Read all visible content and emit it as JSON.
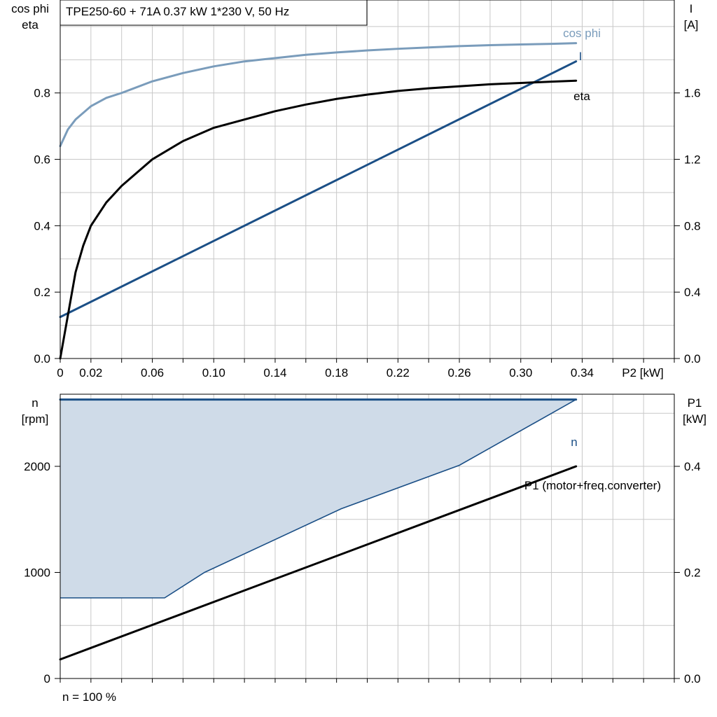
{
  "colors": {
    "cos_phi": "#7a9cbb",
    "current": "#1b4f86",
    "eta": "#000000",
    "speed": "#1b4f86",
    "speed_fill": "#cfdbe8",
    "p1": "#000000",
    "grid": "#c8c8c8"
  },
  "chart_data": [
    {
      "type": "line",
      "title": "TPE250-60 + 71A   0.37 kW   1*230 V, 50 Hz",
      "xlabel": "P2 [kW]",
      "ylabel_left": [
        "cos phi",
        "eta"
      ],
      "ylabel_right": [
        "I",
        "[A]"
      ],
      "xlim": [
        0,
        0.4
      ],
      "ylim_left": [
        0,
        1.08
      ],
      "ylim_right": [
        0,
        2.16
      ],
      "x_ticks": [
        0,
        0.02,
        0.06,
        0.1,
        0.14,
        0.18,
        0.22,
        0.26,
        0.3,
        0.34
      ],
      "x_tick_labels": [
        "0",
        "0.02",
        "0.06",
        "0.10",
        "0.14",
        "0.18",
        "0.22",
        "0.26",
        "0.30",
        "0.34"
      ],
      "y_left_ticks": [
        0,
        0.2,
        0.4,
        0.6,
        0.8
      ],
      "y_left_tick_labels": [
        "0.0",
        "0.2",
        "0.4",
        "0.6",
        "0.8"
      ],
      "y_right_ticks": [
        0,
        0.4,
        0.8,
        1.2,
        1.6
      ],
      "y_right_tick_labels": [
        "0.0",
        "0.4",
        "0.8",
        "1.2",
        "1.6"
      ],
      "grid": true,
      "series": [
        {
          "name": "cos phi",
          "axis": "left",
          "color_key": "cos_phi",
          "x": [
            0,
            0.005,
            0.01,
            0.02,
            0.03,
            0.04,
            0.06,
            0.08,
            0.1,
            0.12,
            0.14,
            0.16,
            0.18,
            0.2,
            0.22,
            0.24,
            0.26,
            0.28,
            0.3,
            0.32,
            0.336
          ],
          "y": [
            0.64,
            0.69,
            0.72,
            0.76,
            0.785,
            0.8,
            0.835,
            0.86,
            0.88,
            0.895,
            0.905,
            0.915,
            0.922,
            0.928,
            0.933,
            0.937,
            0.941,
            0.944,
            0.946,
            0.948,
            0.95
          ]
        },
        {
          "name": "I",
          "axis": "right",
          "color_key": "current",
          "x": [
            0,
            0.336
          ],
          "y": [
            0.25,
            1.79
          ]
        },
        {
          "name": "eta",
          "axis": "left",
          "color_key": "eta",
          "x": [
            0,
            0.005,
            0.01,
            0.015,
            0.02,
            0.03,
            0.04,
            0.05,
            0.06,
            0.08,
            0.1,
            0.12,
            0.14,
            0.16,
            0.18,
            0.2,
            0.22,
            0.24,
            0.26,
            0.28,
            0.3,
            0.32,
            0.336
          ],
          "y": [
            0.0,
            0.13,
            0.26,
            0.34,
            0.4,
            0.47,
            0.52,
            0.56,
            0.6,
            0.655,
            0.695,
            0.72,
            0.745,
            0.765,
            0.782,
            0.795,
            0.806,
            0.814,
            0.82,
            0.826,
            0.83,
            0.834,
            0.837
          ]
        }
      ]
    },
    {
      "type": "line",
      "xlim": [
        0,
        0.4
      ],
      "ylim_left": [
        0,
        2680
      ],
      "ylim_right": [
        0,
        0.536
      ],
      "ylabel_left": [
        "n",
        "[rpm]"
      ],
      "ylabel_right": [
        "P1",
        "[kW]"
      ],
      "y_left_ticks": [
        0,
        1000,
        2000
      ],
      "y_left_tick_labels": [
        "0",
        "1000",
        "2000"
      ],
      "y_right_ticks": [
        0,
        0.2,
        0.4
      ],
      "y_right_tick_labels": [
        "0.0",
        "0.2",
        "0.4"
      ],
      "grid": true,
      "footer": "n = 100 %",
      "series": [
        {
          "name": "n",
          "axis": "left",
          "color_key": "speed",
          "x": [
            0,
            0.336
          ],
          "y": [
            2630,
            2630
          ]
        },
        {
          "name": "P1 (motor+freq.converter)",
          "axis": "right",
          "color_key": "p1",
          "x": [
            0,
            0.336
          ],
          "y": [
            0.036,
            0.4
          ]
        }
      ],
      "area": {
        "axis": "left",
        "upper": {
          "x": [
            0,
            0.336
          ],
          "y": [
            2630,
            2630
          ]
        },
        "lower": {
          "x": [
            0,
            0.068,
            0.094,
            0.183,
            0.26,
            0.336
          ],
          "y": [
            760,
            760,
            1000,
            1600,
            2010,
            2630
          ]
        }
      }
    }
  ]
}
